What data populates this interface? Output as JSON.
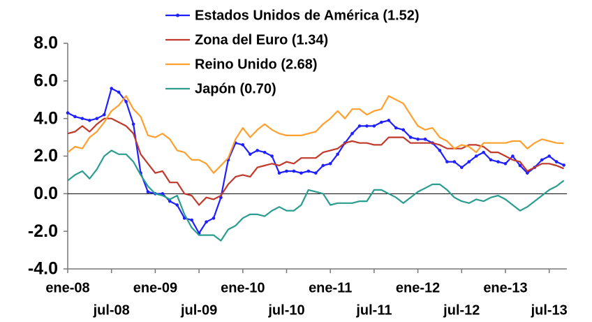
{
  "chart_data": {
    "type": "line",
    "categories": [
      "ene-08",
      null,
      null,
      null,
      null,
      null,
      "jul-08",
      null,
      null,
      null,
      null,
      null,
      "ene-09",
      null,
      null,
      null,
      null,
      null,
      "jul-09",
      null,
      null,
      null,
      null,
      null,
      "ene-10",
      null,
      null,
      null,
      null,
      null,
      "jul-10",
      null,
      null,
      null,
      null,
      null,
      "ene-11",
      null,
      null,
      null,
      null,
      null,
      "jul-11",
      null,
      null,
      null,
      null,
      null,
      "ene-12",
      null,
      null,
      null,
      null,
      null,
      "jul-12",
      null,
      null,
      null,
      null,
      null,
      "ene-13",
      null,
      null,
      null,
      null,
      null,
      "jul-13",
      null,
      null
    ],
    "series": [
      {
        "name": "Estados Unidos de América (1.52)",
        "color": "#1f1fff",
        "markers": true,
        "values": [
          4.3,
          4.1,
          4.0,
          3.9,
          4.0,
          4.2,
          5.6,
          5.4,
          4.9,
          3.7,
          1.1,
          0.1,
          0.0,
          0.0,
          -0.4,
          -0.6,
          -1.3,
          -1.4,
          -2.1,
          -1.5,
          -1.3,
          -0.2,
          1.8,
          2.7,
          2.6,
          2.1,
          2.3,
          2.2,
          2.0,
          1.1,
          1.2,
          1.2,
          1.1,
          1.2,
          1.1,
          1.5,
          1.6,
          2.1,
          2.7,
          3.2,
          3.6,
          3.6,
          3.6,
          3.8,
          3.9,
          3.5,
          3.4,
          3.0,
          2.9,
          2.9,
          2.7,
          2.3,
          1.7,
          1.7,
          1.4,
          1.7,
          2.0,
          2.2,
          1.8,
          1.7,
          1.6,
          2.0,
          1.5,
          1.1,
          1.4,
          1.8,
          2.0,
          1.7,
          1.52
        ]
      },
      {
        "name": "Zona del Euro (1.34)",
        "color": "#c0392b",
        "markers": false,
        "values": [
          3.2,
          3.3,
          3.6,
          3.3,
          3.7,
          4.0,
          4.0,
          3.8,
          3.6,
          3.2,
          2.1,
          1.6,
          1.1,
          1.2,
          0.6,
          0.6,
          0.0,
          -0.1,
          -0.6,
          -0.2,
          -0.3,
          -0.1,
          0.5,
          0.9,
          1.0,
          0.9,
          1.4,
          1.5,
          1.6,
          1.5,
          1.7,
          1.6,
          1.9,
          1.9,
          1.9,
          2.2,
          2.3,
          2.4,
          2.7,
          2.8,
          2.7,
          2.7,
          2.6,
          2.6,
          3.0,
          3.0,
          3.0,
          2.7,
          2.7,
          2.7,
          2.7,
          2.6,
          2.4,
          2.4,
          2.4,
          2.6,
          2.6,
          2.5,
          2.2,
          2.2,
          2.0,
          1.8,
          1.7,
          1.2,
          1.4,
          1.6,
          1.6,
          1.5,
          1.34
        ]
      },
      {
        "name": "Reino Unido (2.68)",
        "color": "#ff9f2e",
        "markers": false,
        "values": [
          2.2,
          2.5,
          2.4,
          3.0,
          3.3,
          3.8,
          4.4,
          4.7,
          5.2,
          4.5,
          4.1,
          3.1,
          3.0,
          3.2,
          2.9,
          2.3,
          2.2,
          1.8,
          1.8,
          1.6,
          1.1,
          1.5,
          1.9,
          2.9,
          3.5,
          3.0,
          3.4,
          3.7,
          3.4,
          3.2,
          3.1,
          3.1,
          3.1,
          3.2,
          3.3,
          3.7,
          4.0,
          4.4,
          4.0,
          4.5,
          4.5,
          4.2,
          4.4,
          4.5,
          5.2,
          5.0,
          4.8,
          4.2,
          3.6,
          3.4,
          3.5,
          3.0,
          2.8,
          2.4,
          2.6,
          2.5,
          2.2,
          2.7,
          2.7,
          2.7,
          2.7,
          2.8,
          2.8,
          2.4,
          2.7,
          2.9,
          2.8,
          2.7,
          2.68
        ]
      },
      {
        "name": "Japón (0.70)",
        "color": "#2a9d8f",
        "markers": false,
        "values": [
          0.7,
          1.0,
          1.2,
          0.8,
          1.3,
          2.0,
          2.3,
          2.1,
          2.1,
          1.7,
          1.0,
          0.4,
          0.0,
          -0.1,
          -0.3,
          -0.1,
          -1.1,
          -1.8,
          -2.2,
          -2.2,
          -2.2,
          -2.5,
          -1.9,
          -1.7,
          -1.3,
          -1.1,
          -1.1,
          -1.2,
          -0.9,
          -0.7,
          -0.9,
          -0.9,
          -0.6,
          0.2,
          0.1,
          0.0,
          -0.6,
          -0.5,
          -0.5,
          -0.5,
          -0.4,
          -0.4,
          0.2,
          0.2,
          0.0,
          -0.2,
          -0.5,
          -0.2,
          0.1,
          0.3,
          0.5,
          0.5,
          0.2,
          -0.2,
          -0.4,
          -0.5,
          -0.3,
          -0.4,
          -0.2,
          -0.1,
          -0.3,
          -0.6,
          -0.9,
          -0.7,
          -0.4,
          -0.1,
          0.2,
          0.4,
          0.7
        ]
      }
    ],
    "ylim": [
      -4,
      8
    ],
    "yticks": [
      {
        "value": -4,
        "label": "-4.0"
      },
      {
        "value": -2,
        "label": "-2.0"
      },
      {
        "value": 0,
        "label": "0.0"
      },
      {
        "value": 2,
        "label": "2.0"
      },
      {
        "value": 4,
        "label": "4.0"
      },
      {
        "value": 6,
        "label": "6.0"
      },
      {
        "value": 8,
        "label": "8.0"
      }
    ],
    "zero_line": true
  }
}
